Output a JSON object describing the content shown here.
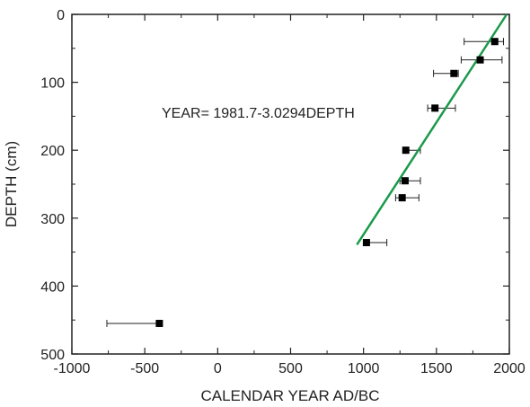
{
  "chart_data": {
    "type": "scatter",
    "xlabel": "CALENDAR YEAR AD/BC",
    "ylabel": "DEPTH (cm)",
    "xlim": [
      -1000,
      2000
    ],
    "ylim": [
      0,
      500
    ],
    "y_inverted": true,
    "x_ticks": [
      -1000,
      -500,
      0,
      500,
      1000,
      1500,
      2000
    ],
    "y_ticks": [
      0,
      100,
      200,
      300,
      400,
      500
    ],
    "x_tick_labels": [
      "-1000",
      "-500",
      "0",
      "500",
      "1000",
      "1500",
      "2000"
    ],
    "y_tick_labels": [
      "0",
      "100",
      "200",
      "300",
      "400",
      "500"
    ],
    "grid": false,
    "annotation": "YEAR= 1981.7-3.0294DEPTH",
    "points": [
      {
        "year": 1900,
        "depth": 40,
        "year_min": 1690,
        "year_max": 1960
      },
      {
        "year": 1800,
        "depth": 67,
        "year_min": 1670,
        "year_max": 1950
      },
      {
        "year": 1620,
        "depth": 87,
        "year_min": 1480,
        "year_max": 1650
      },
      {
        "year": 1490,
        "depth": 138,
        "year_min": 1440,
        "year_max": 1630
      },
      {
        "year": 1290,
        "depth": 200,
        "year_min": 1290,
        "year_max": 1390
      },
      {
        "year": 1285,
        "depth": 245,
        "year_min": 1250,
        "year_max": 1390
      },
      {
        "year": 1265,
        "depth": 270,
        "year_min": 1220,
        "year_max": 1380
      },
      {
        "year": 1020,
        "depth": 336,
        "year_min": 1010,
        "year_max": 1160
      },
      {
        "year": -400,
        "depth": 455,
        "year_min": -760,
        "year_max": -400
      }
    ],
    "fit_line": {
      "depth_range": [
        0,
        339
      ],
      "intercept": 1981.7,
      "slope": -3.0294
    },
    "colors": {
      "points": "#000000",
      "fit_line": "#1a9a4a",
      "axes": "#222222"
    }
  }
}
